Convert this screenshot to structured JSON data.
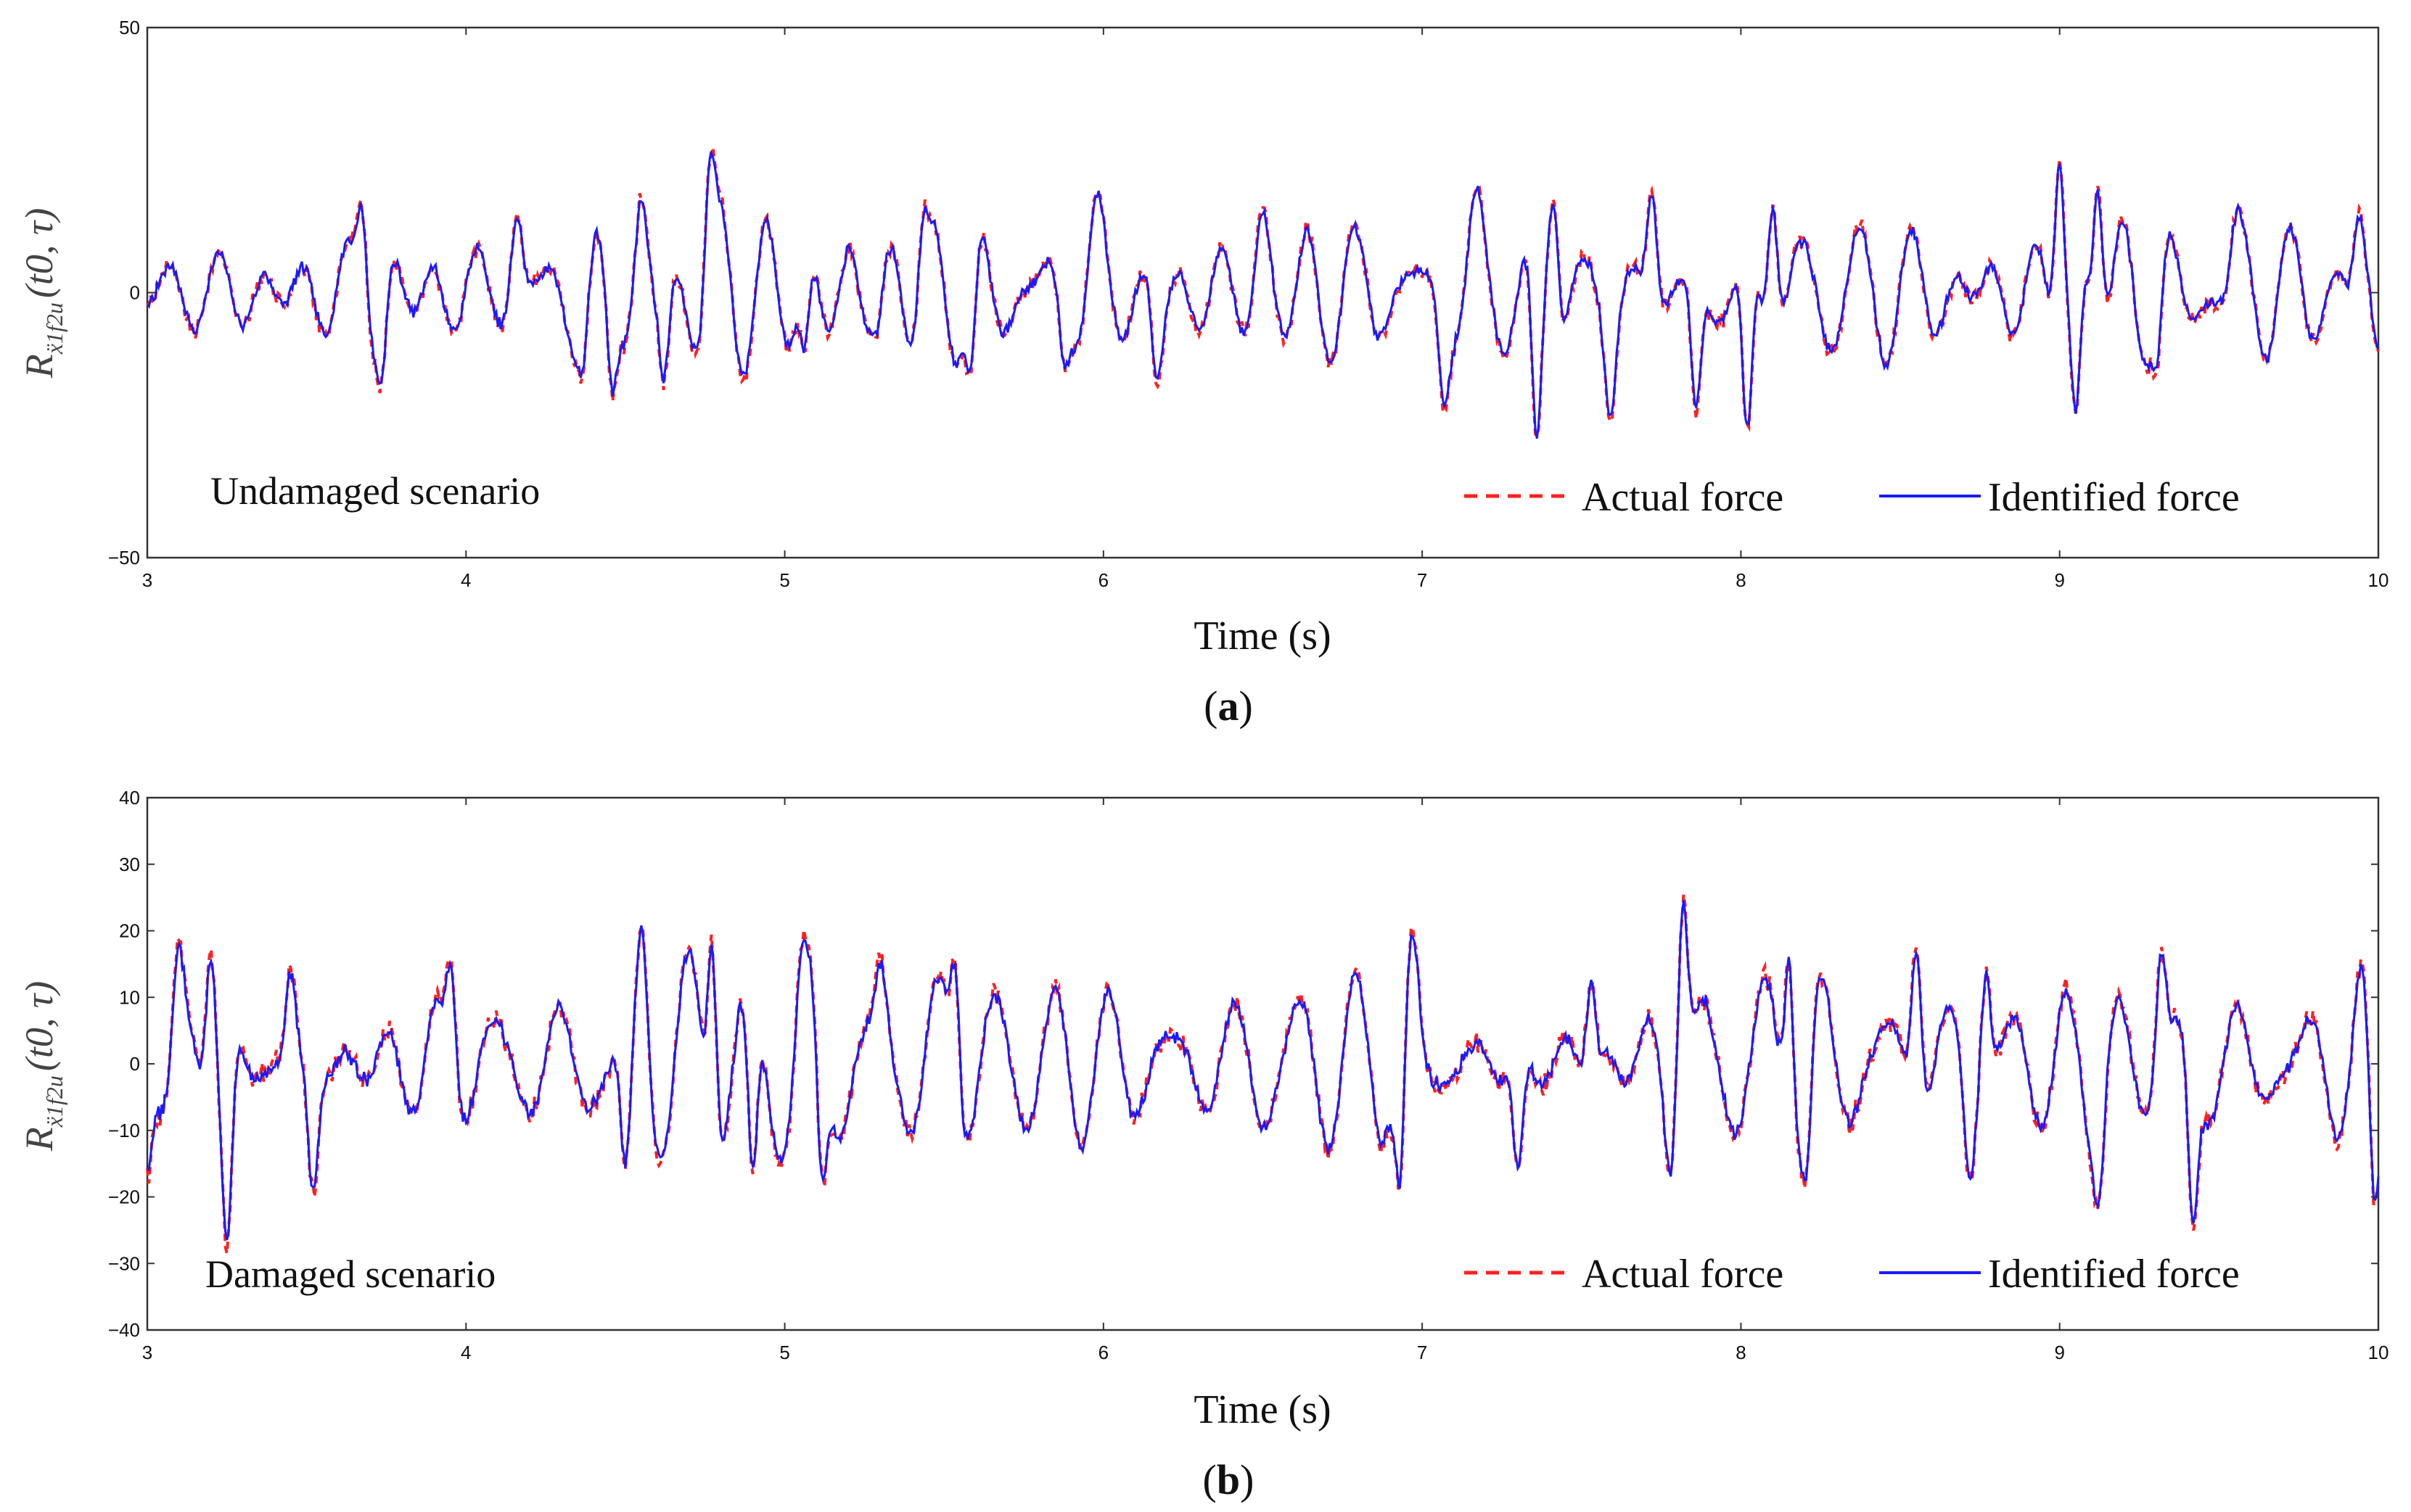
{
  "chart_data": [
    {
      "type": "line",
      "panel_label": "a",
      "caption": "(a)",
      "annotation": "Undamaged scenario",
      "xlabel": "Time (s)",
      "ylabel": "R",
      "ylabel_sub": "ẍ1f2u",
      "ylabel_args": "(t0, τ)",
      "xlim": [
        3,
        10
      ],
      "ylim": [
        -50,
        50
      ],
      "xticks": [
        3,
        4,
        5,
        6,
        7,
        8,
        9,
        10
      ],
      "yticks": [
        -50,
        0,
        50
      ],
      "seed": 7,
      "peaks": [
        [
          3.67,
          17
        ],
        [
          3.73,
          -18
        ],
        [
          4.16,
          15
        ],
        [
          4.36,
          -16
        ],
        [
          4.46,
          -19
        ],
        [
          4.55,
          18
        ],
        [
          4.62,
          -17
        ],
        [
          4.77,
          27
        ],
        [
          5.06,
          -11
        ],
        [
          5.28,
          -8
        ],
        [
          5.44,
          16
        ],
        [
          5.58,
          -16
        ],
        [
          5.88,
          -14
        ],
        [
          5.98,
          19
        ],
        [
          6.17,
          -17
        ],
        [
          6.5,
          16
        ],
        [
          7.07,
          -22
        ],
        [
          7.17,
          20
        ],
        [
          7.36,
          -28
        ],
        [
          7.41,
          18
        ],
        [
          7.59,
          -24
        ],
        [
          7.72,
          19
        ],
        [
          7.86,
          -22
        ],
        [
          8.02,
          -26
        ],
        [
          8.1,
          16
        ],
        [
          9.0,
          25
        ],
        [
          9.05,
          -23
        ],
        [
          9.12,
          20
        ],
        [
          9.3,
          -15
        ],
        [
          9.56,
          16
        ],
        [
          9.94,
          15
        ],
        [
          10.0,
          -10
        ]
      ],
      "series": [
        {
          "name": "Actual force",
          "color": "#ff2020",
          "style": "dashed"
        },
        {
          "name": "Identified force",
          "color": "#1a1aff",
          "style": "solid"
        }
      ],
      "legend_position": "bottom-right"
    },
    {
      "type": "line",
      "panel_label": "b",
      "caption": "(b)",
      "annotation": "Damaged scenario",
      "xlabel": "Time (s)",
      "ylabel": "R",
      "ylabel_sub": "ẍ1f2u",
      "ylabel_args": "(t0, τ)",
      "xlim": [
        3,
        10
      ],
      "ylim": [
        -40,
        40
      ],
      "xticks": [
        3,
        4,
        5,
        6,
        7,
        8,
        9,
        10
      ],
      "yticks": [
        -40,
        -30,
        -20,
        -10,
        0,
        10,
        20,
        30,
        40
      ],
      "seed": 13,
      "peaks": [
        [
          3.0,
          -17
        ],
        [
          3.1,
          18
        ],
        [
          3.2,
          17
        ],
        [
          3.25,
          -28
        ],
        [
          3.45,
          14
        ],
        [
          3.52,
          -20
        ],
        [
          3.95,
          15
        ],
        [
          4.55,
          21
        ],
        [
          4.5,
          -16
        ],
        [
          4.77,
          18
        ],
        [
          4.9,
          -17
        ],
        [
          5.06,
          20
        ],
        [
          5.12,
          -18
        ],
        [
          5.3,
          16
        ],
        [
          5.53,
          16
        ],
        [
          6.5,
          -10
        ],
        [
          6.93,
          -20
        ],
        [
          6.97,
          20
        ],
        [
          7.3,
          -16
        ],
        [
          7.53,
          12
        ],
        [
          7.78,
          -18
        ],
        [
          7.82,
          25
        ],
        [
          8.15,
          16
        ],
        [
          8.2,
          -18
        ],
        [
          8.55,
          18
        ],
        [
          8.72,
          -18
        ],
        [
          8.77,
          14
        ],
        [
          9.12,
          -22
        ],
        [
          9.32,
          17
        ],
        [
          9.42,
          -25
        ],
        [
          9.95,
          16
        ],
        [
          9.99,
          -22
        ]
      ],
      "series": [
        {
          "name": "Actual force",
          "color": "#ff2020",
          "style": "dashed"
        },
        {
          "name": "Identified force",
          "color": "#1a1aff",
          "style": "solid"
        }
      ],
      "legend_position": "bottom-right"
    }
  ]
}
